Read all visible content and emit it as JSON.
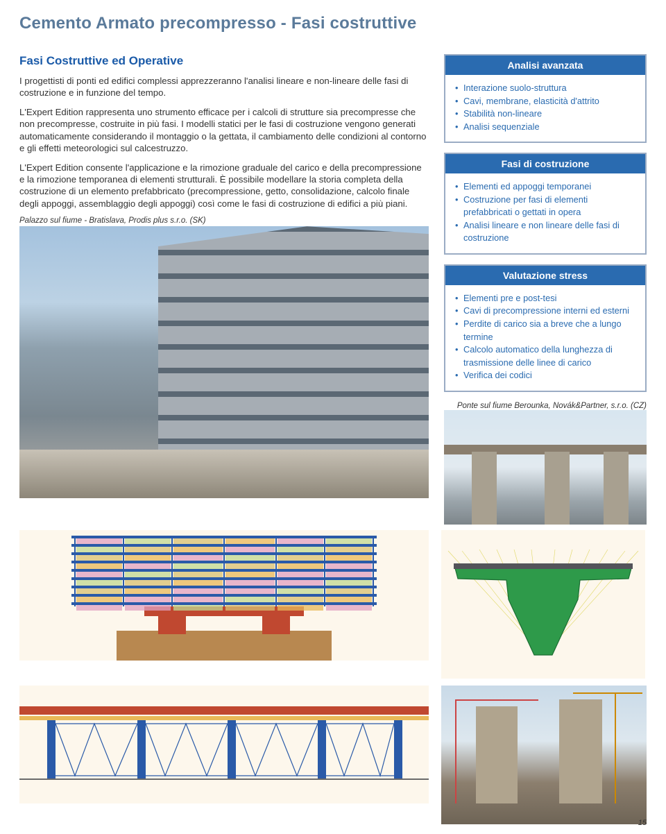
{
  "page": {
    "title": "Cemento Armato precompresso - Fasi costruttive",
    "number": "15"
  },
  "main": {
    "heading": "Fasi Costruttive ed Operative",
    "p1": "I progettisti di ponti ed edifici complessi apprezzeranno l'analisi lineare e non-lineare delle fasi di costruzione e in funzione del tempo.",
    "p2": "L'Expert Edition rappresenta uno strumento efficace per i calcoli di strutture sia precompresse che non precompresse, costruite in più fasi. I modelli statici per le fasi di costruzione vengono generati automaticamente considerando il montaggio o la gettata, il cambiamento delle condizioni al contorno e gli effetti meteorologici sul calcestruzzo.",
    "p3": "L'Expert Edition consente l'applicazione e la rimozione graduale del carico e della precompressione e la rimozione temporanea di elementi strutturali. È possibile modellare la storia completa della costruzione di un elemento prefabbricato (precompressione, getto, consolidazione, calcolo finale degli appoggi, assemblaggio degli appoggi) così come le fasi di costruzione di edifici a più piani.",
    "photo_caption": "Palazzo sul fiume - Bratislava, Prodis plus s.r.o. (SK)"
  },
  "boxes": [
    {
      "title": "Analisi avanzata",
      "items": [
        "Interazione suolo-struttura",
        "Cavi, membrane, elasticità d'attrito",
        "Stabilità non-lineare",
        "Analisi sequenziale"
      ]
    },
    {
      "title": "Fasi di costruzione",
      "items": [
        "Elementi ed appoggi temporanei",
        "Costruzione per fasi di elementi prefabbricati o gettati in opera",
        "Analisi lineare e non lineare delle fasi di costruzione"
      ]
    },
    {
      "title": "Valutazione stress",
      "items": [
        "Elementi pre e post-tesi",
        "Cavi di precompressione interni ed esterni",
        "Perdite di carico sia a breve che a lungo termine",
        "Calcolo automatico della lunghezza di trasmissione delle linee di carico",
        "Verifica dei codici"
      ]
    }
  ],
  "bridge_caption": "Ponte sul fiume Berounka, Novák&Partner, s.r.o. (CZ)",
  "elevation_diagram": {
    "type": "diagram",
    "background_color": "#fdf7ec",
    "floor_colors": [
      "#e0a0c0",
      "#c0d890",
      "#d8c070",
      "#e8b858",
      "#e0a0c0",
      "#c0d890",
      "#d8c070",
      "#e8b858",
      "#e0a0c0"
    ],
    "column_color": "#2a5aa8",
    "foundation_color": "#c04830",
    "ground_color": "#b88850"
  },
  "section_diagram": {
    "type": "diagram",
    "deck_color": "#2e9a4a",
    "cable_color": "#d8d040",
    "background": "#fdf7ec"
  },
  "bridge_elevation": {
    "type": "diagram",
    "deck_color": "#c04830",
    "pier_color": "#2a5aa8",
    "truss_color": "#2a5aa8",
    "background": "#fdf7ec"
  }
}
